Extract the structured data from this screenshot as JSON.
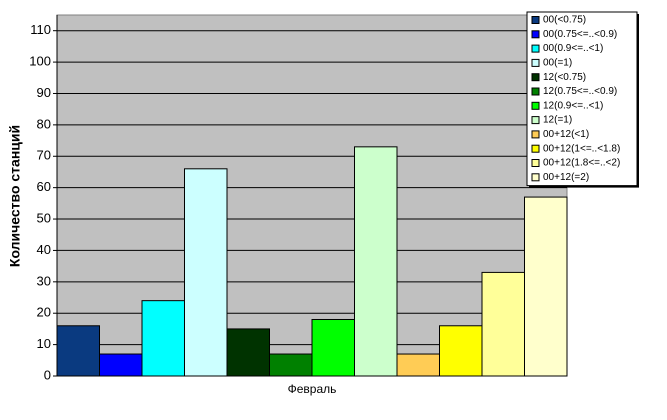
{
  "chart_data": {
    "type": "bar",
    "y_label": "Количество станций",
    "categories": [
      "Февраль"
    ],
    "series": [
      {
        "name": "00(<0.75)",
        "color": "#0a3a80",
        "values": [
          16
        ]
      },
      {
        "name": "00(0.75<=..<0.9)",
        "color": "#0000ff",
        "values": [
          7
        ]
      },
      {
        "name": "00(0.9<=..<1)",
        "color": "#00ffff",
        "values": [
          24
        ]
      },
      {
        "name": "00(=1)",
        "color": "#ccffff",
        "values": [
          66
        ]
      },
      {
        "name": "12(<0.75)",
        "color": "#003300",
        "values": [
          15
        ]
      },
      {
        "name": "12(0.75<=..<0.9)",
        "color": "#008000",
        "values": [
          7
        ]
      },
      {
        "name": "12(0.9<=..<1)",
        "color": "#00ff00",
        "values": [
          18
        ]
      },
      {
        "name": "12(=1)",
        "color": "#ccffcc",
        "values": [
          73
        ]
      },
      {
        "name": "00+12(<1)",
        "color": "#ffcc55",
        "values": [
          7
        ]
      },
      {
        "name": "00+12(1<=..<1.8)",
        "color": "#ffff00",
        "values": [
          16
        ]
      },
      {
        "name": "00+12(1.8<=..<2)",
        "color": "#ffff99",
        "values": [
          33
        ]
      },
      {
        "name": "00+12(=2)",
        "color": "#ffffcc",
        "values": [
          57
        ]
      }
    ],
    "ylim": [
      0,
      115
    ],
    "yticks": [
      0,
      10,
      20,
      30,
      40,
      50,
      60,
      70,
      80,
      90,
      100,
      110
    ],
    "grid": true,
    "legend": "top-right"
  }
}
